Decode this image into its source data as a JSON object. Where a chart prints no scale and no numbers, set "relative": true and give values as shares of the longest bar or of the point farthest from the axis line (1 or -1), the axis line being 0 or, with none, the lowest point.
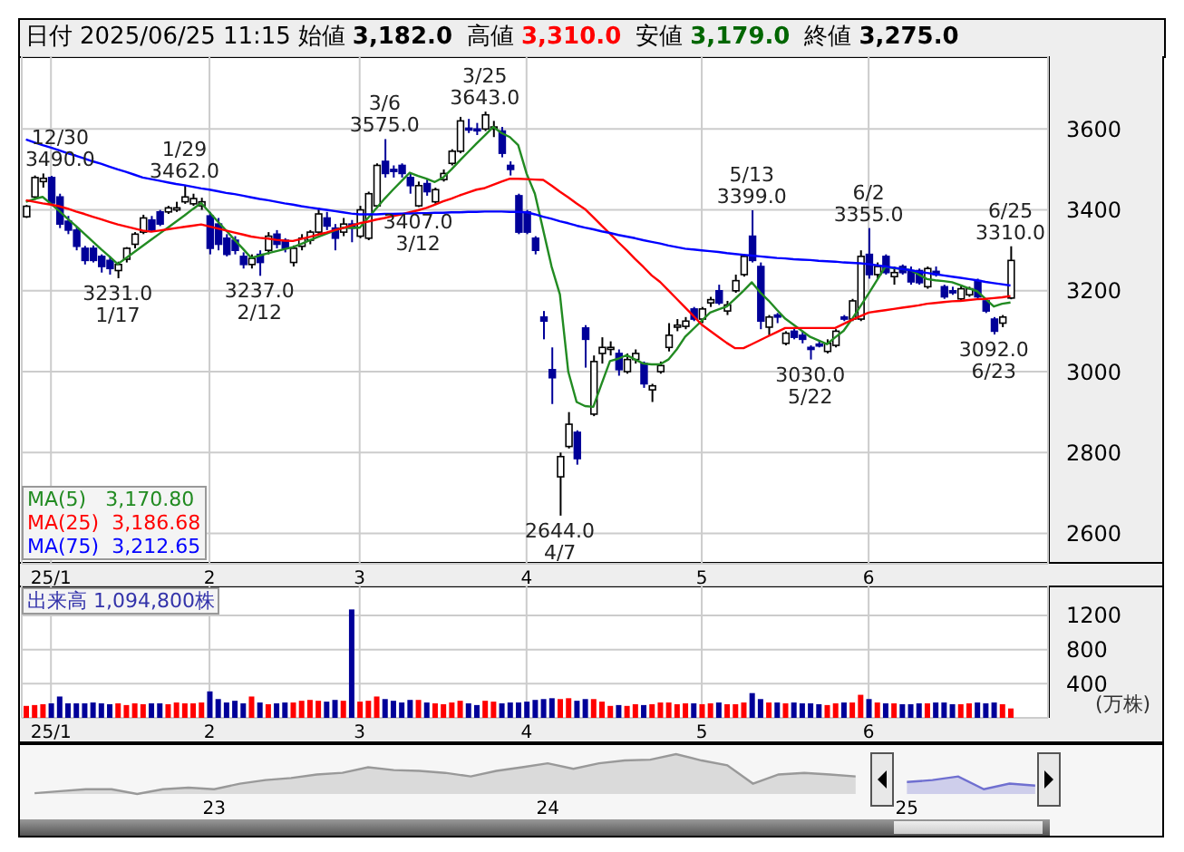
{
  "chart_data": [
    {
      "type": "candlestick",
      "title": "日付 2025/06/25 11:15 始値 3,182.0 高値 3,310.0 安値 3,179.0 終値 3,275.0",
      "categories": [
        null,
        null,
        null,
        "25/1",
        null,
        null,
        null,
        null,
        null,
        null,
        null,
        null,
        null,
        null,
        null,
        null,
        null,
        null,
        null,
        null,
        null,
        null,
        "2",
        null,
        null,
        null,
        null,
        null,
        null,
        null,
        null,
        null,
        null,
        null,
        null,
        null,
        null,
        null,
        null,
        null,
        "3",
        null,
        null,
        null,
        null,
        null,
        null,
        null,
        null,
        null,
        null,
        null,
        null,
        null,
        null,
        null,
        null,
        null,
        null,
        null,
        "4",
        null,
        null,
        null,
        null,
        null,
        null,
        null,
        null,
        null,
        null,
        null,
        null,
        null,
        null,
        null,
        null,
        null,
        null,
        null,
        null,
        "5",
        null,
        null,
        null,
        null,
        null,
        null,
        null,
        null,
        null,
        null,
        null,
        null,
        null,
        null,
        null,
        null,
        null,
        null,
        null,
        "6",
        null,
        null,
        null,
        null,
        null,
        null,
        null,
        null,
        null,
        null,
        null,
        null,
        null,
        null,
        null,
        null,
        null
      ],
      "ohlc": [
        [
          3383,
          3412,
          3380,
          3409
        ],
        [
          3432,
          3485,
          3425,
          3480
        ],
        [
          3470,
          3490,
          3455,
          3478
        ],
        [
          3480,
          3484,
          3410,
          3417
        ],
        [
          3432,
          3440,
          3355,
          3365
        ],
        [
          3372,
          3385,
          3340,
          3350
        ],
        [
          3350,
          3358,
          3300,
          3310
        ],
        [
          3305,
          3311,
          3265,
          3275
        ],
        [
          3305,
          3312,
          3270,
          3275
        ],
        [
          3285,
          3290,
          3245,
          3260
        ],
        [
          3275,
          3285,
          3240,
          3255
        ],
        [
          3250,
          3272,
          3231,
          3265
        ],
        [
          3278,
          3308,
          3270,
          3305
        ],
        [
          3315,
          3345,
          3305,
          3340
        ],
        [
          3345,
          3388,
          3340,
          3380
        ],
        [
          3375,
          3385,
          3345,
          3350
        ],
        [
          3395,
          3400,
          3360,
          3365
        ],
        [
          3395,
          3410,
          3390,
          3405
        ],
        [
          3400,
          3420,
          3395,
          3405
        ],
        [
          3420,
          3462,
          3415,
          3432
        ],
        [
          3415,
          3440,
          3410,
          3428
        ],
        [
          3410,
          3430,
          3400,
          3420
        ],
        [
          3385,
          3395,
          3290,
          3305
        ],
        [
          3365,
          3380,
          3300,
          3315
        ],
        [
          3330,
          3340,
          3285,
          3290
        ],
        [
          3325,
          3335,
          3290,
          3300
        ],
        [
          3285,
          3295,
          3255,
          3265
        ],
        [
          3265,
          3290,
          3255,
          3280
        ],
        [
          3290,
          3300,
          3237,
          3270
        ],
        [
          3300,
          3345,
          3290,
          3335
        ],
        [
          3340,
          3350,
          3305,
          3315
        ],
        [
          3325,
          3330,
          3295,
          3305
        ],
        [
          3270,
          3312,
          3260,
          3305
        ],
        [
          3310,
          3340,
          3300,
          3330
        ],
        [
          3325,
          3350,
          3315,
          3345
        ],
        [
          3345,
          3405,
          3340,
          3390
        ],
        [
          3380,
          3395,
          3350,
          3360
        ],
        [
          3355,
          3365,
          3300,
          3330
        ],
        [
          3345,
          3380,
          3335,
          3365
        ],
        [
          3365,
          3375,
          3320,
          3355
        ],
        [
          3335,
          3410,
          3330,
          3400
        ],
        [
          3330,
          3445,
          3325,
          3440
        ],
        [
          3410,
          3515,
          3405,
          3510
        ],
        [
          3520,
          3575,
          3480,
          3490
        ],
        [
          3500,
          3510,
          3480,
          3495
        ],
        [
          3510,
          3515,
          3480,
          3490
        ],
        [
          3480,
          3490,
          3440,
          3460
        ],
        [
          3410,
          3470,
          3407,
          3460
        ],
        [
          3465,
          3475,
          3435,
          3445
        ],
        [
          3420,
          3455,
          3415,
          3450
        ],
        [
          3475,
          3500,
          3470,
          3490
        ],
        [
          3515,
          3550,
          3510,
          3545
        ],
        [
          3545,
          3630,
          3540,
          3620
        ],
        [
          3602,
          3625,
          3590,
          3598
        ],
        [
          3600,
          3615,
          3585,
          3597
        ],
        [
          3600,
          3643,
          3595,
          3635
        ],
        [
          3600,
          3620,
          3580,
          3605
        ],
        [
          3595,
          3605,
          3530,
          3540
        ],
        [
          3510,
          3520,
          3485,
          3500
        ],
        [
          3435,
          3440,
          3340,
          3345
        ],
        [
          3395,
          3400,
          3340,
          3345
        ],
        [
          3330,
          3335,
          3290,
          3300
        ],
        [
          3135,
          3150,
          3080,
          3125
        ],
        [
          3005,
          3060,
          2920,
          2985
        ],
        [
          2740,
          2800,
          2644,
          2790
        ],
        [
          2815,
          2900,
          2810,
          2870
        ],
        [
          2850,
          2855,
          2770,
          2785
        ],
        [
          3108,
          3115,
          3010,
          3080
        ],
        [
          2895,
          3040,
          2890,
          3025
        ],
        [
          3045,
          3085,
          3020,
          3060
        ],
        [
          3055,
          3075,
          3040,
          3060
        ],
        [
          3045,
          3055,
          2990,
          3005
        ],
        [
          3000,
          3045,
          2995,
          3030
        ],
        [
          3030,
          3055,
          3020,
          3045
        ],
        [
          3020,
          3025,
          2960,
          2970
        ],
        [
          2955,
          2970,
          2925,
          2965
        ],
        [
          3000,
          3025,
          2995,
          3015
        ],
        [
          3060,
          3120,
          3050,
          3090
        ],
        [
          3110,
          3130,
          3100,
          3115
        ],
        [
          3112,
          3135,
          3105,
          3125
        ],
        [
          3155,
          3160,
          3125,
          3130
        ],
        [
          3130,
          3160,
          3120,
          3155
        ],
        [
          3170,
          3185,
          3160,
          3178
        ],
        [
          3200,
          3215,
          3165,
          3170
        ],
        [
          3150,
          3175,
          3140,
          3165
        ],
        [
          3200,
          3240,
          3195,
          3225
        ],
        [
          3240,
          3290,
          3235,
          3285
        ],
        [
          3335,
          3399,
          3270,
          3275
        ],
        [
          3260,
          3270,
          3105,
          3125
        ],
        [
          3110,
          3140,
          3090,
          3135
        ],
        [
          3140,
          3145,
          3120,
          3135
        ],
        [
          3070,
          3100,
          3065,
          3095
        ],
        [
          3100,
          3110,
          3080,
          3085
        ],
        [
          3090,
          3100,
          3070,
          3080
        ],
        [
          3060,
          3065,
          3030,
          3055
        ],
        [
          3068,
          3075,
          3060,
          3065
        ],
        [
          3050,
          3080,
          3045,
          3070
        ],
        [
          3065,
          3105,
          3060,
          3100
        ],
        [
          3135,
          3140,
          3125,
          3130
        ],
        [
          3130,
          3180,
          3125,
          3175
        ],
        [
          3130,
          3300,
          3125,
          3285
        ],
        [
          3290,
          3355,
          3230,
          3240
        ],
        [
          3240,
          3270,
          3230,
          3260
        ],
        [
          3285,
          3290,
          3240,
          3245
        ],
        [
          3235,
          3260,
          3215,
          3245
        ],
        [
          3260,
          3265,
          3240,
          3245
        ],
        [
          3250,
          3260,
          3215,
          3222
        ],
        [
          3250,
          3255,
          3215,
          3220
        ],
        [
          3210,
          3260,
          3205,
          3255
        ],
        [
          3248,
          3260,
          3235,
          3240
        ],
        [
          3210,
          3215,
          3180,
          3185
        ],
        [
          3200,
          3210,
          3190,
          3195
        ],
        [
          3180,
          3215,
          3175,
          3205
        ],
        [
          3190,
          3210,
          3185,
          3205
        ],
        [
          3225,
          3230,
          3180,
          3185
        ],
        [
          3175,
          3180,
          3145,
          3150
        ],
        [
          3130,
          3135,
          3092,
          3100
        ],
        [
          3120,
          3140,
          3110,
          3135
        ],
        [
          3182,
          3310,
          3179,
          3275
        ]
      ],
      "series": [
        {
          "name": "MA(5)   3,170.80",
          "type": "line",
          "color": "#228b22",
          "values": [
            3420,
            3427,
            3432,
            3415,
            3397,
            3378,
            3360,
            3341,
            3322,
            3303,
            3285,
            3266,
            3281,
            3296,
            3311,
            3326,
            3341,
            3356,
            3371,
            3386,
            3402,
            3417,
            3394,
            3371,
            3349,
            3326,
            3304,
            3281,
            3287,
            3293,
            3298,
            3303,
            3308,
            3316,
            3325,
            3333,
            3341,
            3349,
            3356,
            3356,
            3356,
            3380,
            3404,
            3428,
            3450,
            3471,
            3492,
            3484,
            3477,
            3469,
            3480,
            3500,
            3522,
            3543,
            3564,
            3584,
            3605,
            3590,
            3580,
            3560,
            3490,
            3440,
            3350,
            3260,
            3191,
            3000,
            2925,
            2915,
            2913,
            2970,
            3026,
            3032,
            3041,
            3030,
            3020,
            3018,
            3018,
            3030,
            3055,
            3086,
            3106,
            3126,
            3146,
            3154,
            3161,
            3180,
            3200,
            3221,
            3196,
            3176,
            3153,
            3131,
            3116,
            3101,
            3086,
            3077,
            3068,
            3085,
            3101,
            3130,
            3161,
            3193,
            3226,
            3259,
            3256,
            3254,
            3251,
            3240,
            3229,
            3226,
            3224,
            3221,
            3214,
            3206,
            3199,
            3180,
            3161,
            3168,
            3171
          ]
        },
        {
          "name": "MA(25)  3,186.68",
          "type": "line",
          "color": "#ff0000",
          "values": [
            3424,
            3420,
            3416,
            3413,
            3409,
            3403,
            3396,
            3390,
            3383,
            3377,
            3370,
            3364,
            3359,
            3354,
            3349,
            3346,
            3349,
            3352,
            3355,
            3358,
            3361,
            3364,
            3359,
            3354,
            3349,
            3344,
            3339,
            3334,
            3331,
            3329,
            3326,
            3324,
            3323,
            3328,
            3333,
            3339,
            3344,
            3350,
            3355,
            3361,
            3367,
            3371,
            3376,
            3380,
            3385,
            3389,
            3394,
            3399,
            3405,
            3413,
            3421,
            3428,
            3436,
            3443,
            3450,
            3454,
            3462,
            3470,
            3477,
            3477,
            3476,
            3475,
            3474,
            3460,
            3445,
            3431,
            3416,
            3402,
            3382,
            3361,
            3341,
            3320,
            3300,
            3279,
            3259,
            3238,
            3222,
            3201,
            3180,
            3159,
            3138,
            3116,
            3101,
            3086,
            3071,
            3058,
            3058,
            3068,
            3078,
            3088,
            3098,
            3108,
            3108,
            3108,
            3108,
            3108,
            3108,
            3108,
            3118,
            3128,
            3137,
            3146,
            3149,
            3152,
            3155,
            3158,
            3161,
            3164,
            3168,
            3170,
            3172,
            3174,
            3175,
            3177,
            3179,
            3180,
            3182,
            3184,
            3187
          ]
        },
        {
          "name": "MA(75)  3,212.65",
          "type": "line",
          "color": "#0000ff",
          "values": [
            3574,
            3567,
            3560,
            3554,
            3547,
            3540,
            3534,
            3527,
            3520,
            3514,
            3507,
            3500,
            3494,
            3487,
            3480,
            3476,
            3472,
            3468,
            3464,
            3461,
            3457,
            3453,
            3450,
            3446,
            3442,
            3439,
            3435,
            3431,
            3427,
            3424,
            3420,
            3416,
            3413,
            3409,
            3406,
            3403,
            3400,
            3397,
            3394,
            3391,
            3389,
            3389,
            3389,
            3390,
            3390,
            3391,
            3391,
            3392,
            3392,
            3393,
            3393,
            3394,
            3394,
            3395,
            3395,
            3396,
            3396,
            3396,
            3395,
            3395,
            3394,
            3389,
            3383,
            3378,
            3372,
            3367,
            3361,
            3356,
            3352,
            3347,
            3343,
            3338,
            3334,
            3330,
            3325,
            3321,
            3317,
            3312,
            3308,
            3304,
            3302,
            3300,
            3298,
            3296,
            3293,
            3291,
            3289,
            3287,
            3285,
            3283,
            3281,
            3280,
            3278,
            3277,
            3276,
            3274,
            3273,
            3272,
            3270,
            3269,
            3268,
            3266,
            3263,
            3260,
            3257,
            3254,
            3251,
            3247,
            3244,
            3241,
            3238,
            3235,
            3232,
            3229,
            3226,
            3222,
            3219,
            3216,
            3213
          ]
        }
      ],
      "ylim": [
        2525,
        3780
      ],
      "yticks": [
        2600,
        2800,
        3000,
        3200,
        3400,
        3600
      ],
      "grid": true,
      "legend": "bottom left",
      "annotations": [
        {
          "text": "12/30\n3490.0",
          "y": 3490
        },
        {
          "text": "3231.0\n1/17",
          "y": 3231
        },
        {
          "text": "1/29\n3462.0",
          "y": 3462
        },
        {
          "text": "3237.0\n2/12",
          "y": 3237
        },
        {
          "text": "3/6\n3575.0",
          "y": 3575
        },
        {
          "text": "3407.0\n3/12",
          "y": 3407
        },
        {
          "text": "3/25\n3643.0",
          "y": 3643
        },
        {
          "text": "2644.0\n4/7",
          "y": 2644
        },
        {
          "text": "5/13\n3399.0",
          "y": 3399
        },
        {
          "text": "3030.0\n5/22",
          "y": 3030
        },
        {
          "text": "6/2\n3355.0",
          "y": 3355
        },
        {
          "text": "3092.0\n6/23",
          "y": 3092
        },
        {
          "text": "6/25\n3310.0",
          "y": 3310
        }
      ]
    },
    {
      "type": "bar",
      "title": "出来高 1,094,800株",
      "ylabel": "(万株)",
      "categories": [
        null,
        null,
        null,
        "25/1",
        null,
        null,
        null,
        null,
        null,
        null,
        null,
        null,
        null,
        null,
        null,
        null,
        null,
        null,
        null,
        null,
        null,
        null,
        "2",
        null,
        null,
        null,
        null,
        null,
        null,
        null,
        null,
        null,
        null,
        null,
        null,
        null,
        null,
        null,
        null,
        null,
        "3",
        null,
        null,
        null,
        null,
        null,
        null,
        null,
        null,
        null,
        null,
        null,
        null,
        null,
        null,
        null,
        null,
        null,
        null,
        null,
        "4",
        null,
        null,
        null,
        null,
        null,
        null,
        null,
        null,
        null,
        null,
        null,
        null,
        null,
        null,
        null,
        null,
        null,
        null,
        null,
        null,
        "5",
        null,
        null,
        null,
        null,
        null,
        null,
        null,
        null,
        null,
        null,
        null,
        null,
        null,
        null,
        null,
        null,
        null,
        null,
        null,
        "6",
        null,
        null,
        null,
        null,
        null,
        null,
        null,
        null,
        null,
        null,
        null,
        null,
        null,
        null,
        null,
        null,
        null
      ],
      "values": [
        140,
        150,
        160,
        170,
        250,
        170,
        170,
        170,
        180,
        170,
        160,
        170,
        150,
        170,
        160,
        170,
        170,
        160,
        180,
        170,
        170,
        180,
        310,
        220,
        180,
        200,
        170,
        250,
        180,
        160,
        170,
        180,
        180,
        200,
        210,
        200,
        190,
        210,
        200,
        1270,
        190,
        200,
        250,
        220,
        200,
        180,
        210,
        210,
        180,
        170,
        160,
        180,
        200,
        170,
        150,
        200,
        190,
        170,
        180,
        180,
        190,
        210,
        220,
        230,
        220,
        230,
        200,
        220,
        220,
        190,
        140,
        150,
        140,
        160,
        150,
        160,
        180,
        180,
        160,
        170,
        170,
        160,
        170,
        180,
        160,
        160,
        180,
        290,
        220,
        180,
        180,
        170,
        180,
        170,
        170,
        160,
        150,
        170,
        180,
        180,
        270,
        220,
        180,
        170,
        170,
        160,
        160,
        170,
        170,
        180,
        180,
        160,
        160,
        170,
        180,
        170,
        180,
        160,
        110
      ],
      "colors": [
        "#ff0000",
        "#ff0000",
        "#ff0000",
        "#000099",
        "#000099",
        "#000099",
        "#000099",
        "#000099",
        "#000099",
        "#000099",
        "#000099",
        "#ff0000",
        "#ff0000",
        "#ff0000",
        "#ff0000",
        "#000099",
        "#000099",
        "#ff0000",
        "#ff0000",
        "#ff0000",
        "#ff0000",
        "#ff0000",
        "#000099",
        "#000099",
        "#000099",
        "#000099",
        "#000099",
        "#ff0000",
        "#000099",
        "#ff0000",
        "#000099",
        "#000099",
        "#ff0000",
        "#ff0000",
        "#ff0000",
        "#ff0000",
        "#000099",
        "#000099",
        "#ff0000",
        "#000099",
        "#ff0000",
        "#ff0000",
        "#ff0000",
        "#000099",
        "#000099",
        "#000099",
        "#000099",
        "#ff0000",
        "#000099",
        "#ff0000",
        "#ff0000",
        "#ff0000",
        "#ff0000",
        "#000099",
        "#000099",
        "#ff0000",
        "#ff0000",
        "#000099",
        "#000099",
        "#000099",
        "#000099",
        "#000099",
        "#000099",
        "#000099",
        "#ff0000",
        "#ff0000",
        "#000099",
        "#000099",
        "#ff0000",
        "#ff0000",
        "#ff0000",
        "#000099",
        "#ff0000",
        "#ff0000",
        "#000099",
        "#ff0000",
        "#ff0000",
        "#ff0000",
        "#ff0000",
        "#ff0000",
        "#000099",
        "#ff0000",
        "#ff0000",
        "#000099",
        "#ff0000",
        "#ff0000",
        "#ff0000",
        "#000099",
        "#000099",
        "#ff0000",
        "#000099",
        "#ff0000",
        "#000099",
        "#000099",
        "#000099",
        "#000099",
        "#ff0000",
        "#ff0000",
        "#000099",
        "#ff0000",
        "#ff0000",
        "#000099",
        "#ff0000",
        "#000099",
        "#ff0000",
        "#000099",
        "#000099",
        "#000099",
        "#ff0000",
        "#000099",
        "#000099",
        "#000099",
        "#ff0000",
        "#ff0000",
        "#000099",
        "#000099",
        "#000099",
        "#ff0000",
        "#ff0000"
      ],
      "ylim": [
        0,
        1550
      ],
      "yticks": [
        400,
        800,
        1200
      ],
      "grid": true
    },
    {
      "type": "area",
      "relative": true,
      "categories": [
        null,
        null,
        null,
        null,
        null,
        null,
        null,
        "23",
        null,
        null,
        null,
        null,
        null,
        null,
        null,
        null,
        null,
        null,
        null,
        null,
        "24",
        null,
        null,
        null,
        null,
        null,
        null,
        null,
        null,
        null,
        null,
        null,
        null,
        null,
        "25",
        null,
        null,
        null,
        null,
        null
      ],
      "series": [
        {
          "color": "#999999",
          "values": [
            0.02,
            0.07,
            0.12,
            0.12,
            0,
            0.12,
            0.16,
            0.12,
            0.26,
            0.35,
            0.4,
            0.49,
            0.53,
            0.67,
            0.6,
            0.58,
            0.53,
            0.44,
            0.58,
            0.67,
            0.77,
            0.63,
            0.77,
            0.84,
            0.86,
            1,
            0.84,
            0.72,
            0.26,
            0.49,
            0.53,
            0.49,
            0.44,
            null,
            null,
            null,
            null,
            null,
            null,
            null
          ]
        },
        {
          "color": "#6f6fd0",
          "values": [
            null,
            null,
            null,
            null,
            null,
            null,
            null,
            null,
            null,
            null,
            null,
            null,
            null,
            null,
            null,
            null,
            null,
            null,
            null,
            null,
            null,
            null,
            null,
            null,
            null,
            null,
            null,
            null,
            null,
            null,
            null,
            null,
            null,
            null,
            0.3,
            0.35,
            0.44,
            0.12,
            0.26,
            0.21
          ]
        }
      ]
    }
  ]
}
